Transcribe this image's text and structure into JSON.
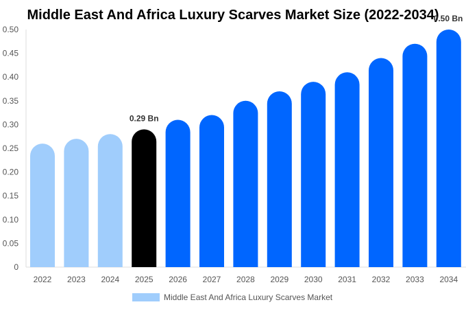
{
  "chart_data": {
    "type": "bar",
    "title": "Middle East And Africa Luxury Scarves Market Size (2022-2034)",
    "categories": [
      "2022",
      "2023",
      "2024",
      "2025",
      "2026",
      "2027",
      "2028",
      "2029",
      "2030",
      "2031",
      "2032",
      "2033",
      "2034"
    ],
    "series": [
      {
        "name": "Middle East And Africa Luxury Scarves Market",
        "values": [
          0.26,
          0.27,
          0.28,
          0.29,
          0.31,
          0.32,
          0.35,
          0.37,
          0.39,
          0.41,
          0.44,
          0.47,
          0.5
        ]
      }
    ],
    "yticks": [
      "0",
      "0.05",
      "0.10",
      "0.15",
      "0.20",
      "0.25",
      "0.30",
      "0.35",
      "0.40",
      "0.45",
      "0.50"
    ],
    "ylim": [
      0,
      0.5
    ],
    "xlabel": "",
    "ylabel": "",
    "annotations": [
      {
        "category": "2025",
        "text": "0.29 Bn"
      },
      {
        "category": "2034",
        "text": "0.50 Bn"
      }
    ],
    "legend_placement": "bottom",
    "grid": false,
    "colors": {
      "historical": "#a0cdfc",
      "current": "#000000",
      "forecast": "#0066ff"
    }
  }
}
